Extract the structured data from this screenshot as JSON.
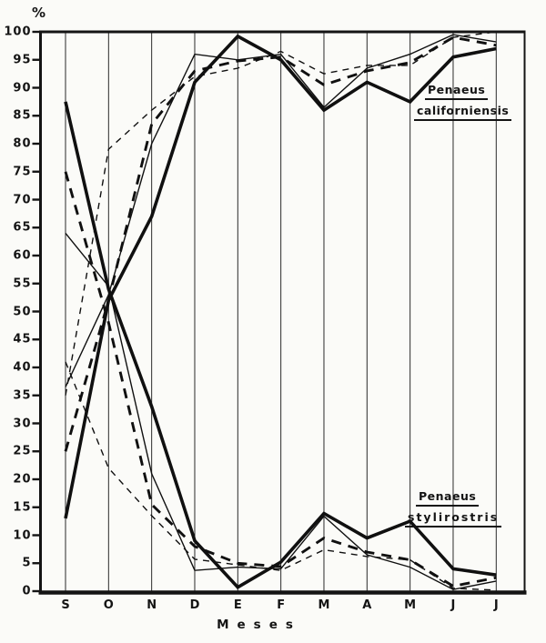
{
  "page": {
    "background": "#fbfbf8",
    "ink": "#141414"
  },
  "y_axis": {
    "unit_label": "%",
    "min": 0,
    "max": 100,
    "step": 5,
    "ticks": [
      0,
      5,
      10,
      15,
      20,
      25,
      30,
      35,
      40,
      45,
      50,
      55,
      60,
      65,
      70,
      75,
      80,
      85,
      90,
      95,
      100
    ]
  },
  "x_axis": {
    "title": "Meses",
    "months": [
      "S",
      "O",
      "N",
      "D",
      "E",
      "F",
      "M",
      "A",
      "M",
      "J",
      "J"
    ]
  },
  "annotations": {
    "californiensis": {
      "line1": "Penaeus",
      "line2": "californiensis"
    },
    "stylirostris": {
      "line1": "Penaeus",
      "line2": "stylirostris"
    }
  },
  "chart_data": {
    "type": "line",
    "title": "",
    "xlabel": "Meses",
    "ylabel": "%",
    "ylim": [
      0,
      100
    ],
    "grid": "vertical-only",
    "legend_position": "none",
    "categories": [
      "S",
      "O",
      "N",
      "D",
      "E",
      "F",
      "M",
      "A",
      "M",
      "J",
      "J"
    ],
    "series": [
      {
        "name": "Penaeus californiensis (thick solid)",
        "species": "californiensis",
        "style": "thick-solid",
        "values": [
          13,
          52,
          67,
          91,
          99.2,
          95,
          86,
          91,
          87.5,
          95.5,
          97
        ]
      },
      {
        "name": "Penaeus californiensis (thin solid)",
        "species": "californiensis",
        "style": "thin-solid",
        "values": [
          36.5,
          53,
          80,
          96,
          95,
          96,
          86.5,
          93.5,
          96,
          99.5,
          98.2
        ]
      },
      {
        "name": "Penaeus californiensis (thick dashed)",
        "species": "californiensis",
        "style": "thick-dashed",
        "values": [
          25,
          52,
          83.5,
          93,
          94.8,
          95.5,
          90.5,
          93,
          94.5,
          99,
          97.6
        ]
      },
      {
        "name": "Penaeus californiensis (thin dashed)",
        "species": "californiensis",
        "style": "thin-dashed",
        "values": [
          35,
          79,
          86,
          92,
          93.5,
          96.5,
          92.5,
          94,
          94,
          99,
          100
        ]
      },
      {
        "name": "Penaeus stylirostris (thick solid)",
        "species": "stylirostris",
        "style": "thick-solid",
        "values": [
          87.5,
          54,
          33,
          9,
          0.7,
          5.2,
          13.9,
          9.5,
          12.5,
          4,
          2.9
        ]
      },
      {
        "name": "Penaeus stylirostris (thin solid)",
        "species": "stylirostris",
        "style": "thin-solid",
        "values": [
          64,
          54.5,
          21,
          3.7,
          4.3,
          4,
          13.4,
          6.5,
          4.3,
          0.3,
          1.8
        ]
      },
      {
        "name": "Penaeus stylirostris (thick dashed)",
        "species": "stylirostris",
        "style": "thick-dashed",
        "values": [
          75,
          48,
          15.5,
          8,
          5,
          4.4,
          9.5,
          7,
          5.6,
          0.9,
          2.4
        ]
      },
      {
        "name": "Penaeus stylirostris (thin dashed)",
        "species": "stylirostris",
        "style": "thin-dashed",
        "values": [
          41,
          22,
          13.5,
          5.7,
          4.7,
          3.7,
          7.4,
          6.2,
          5.6,
          0.5,
          0.2
        ]
      }
    ]
  }
}
